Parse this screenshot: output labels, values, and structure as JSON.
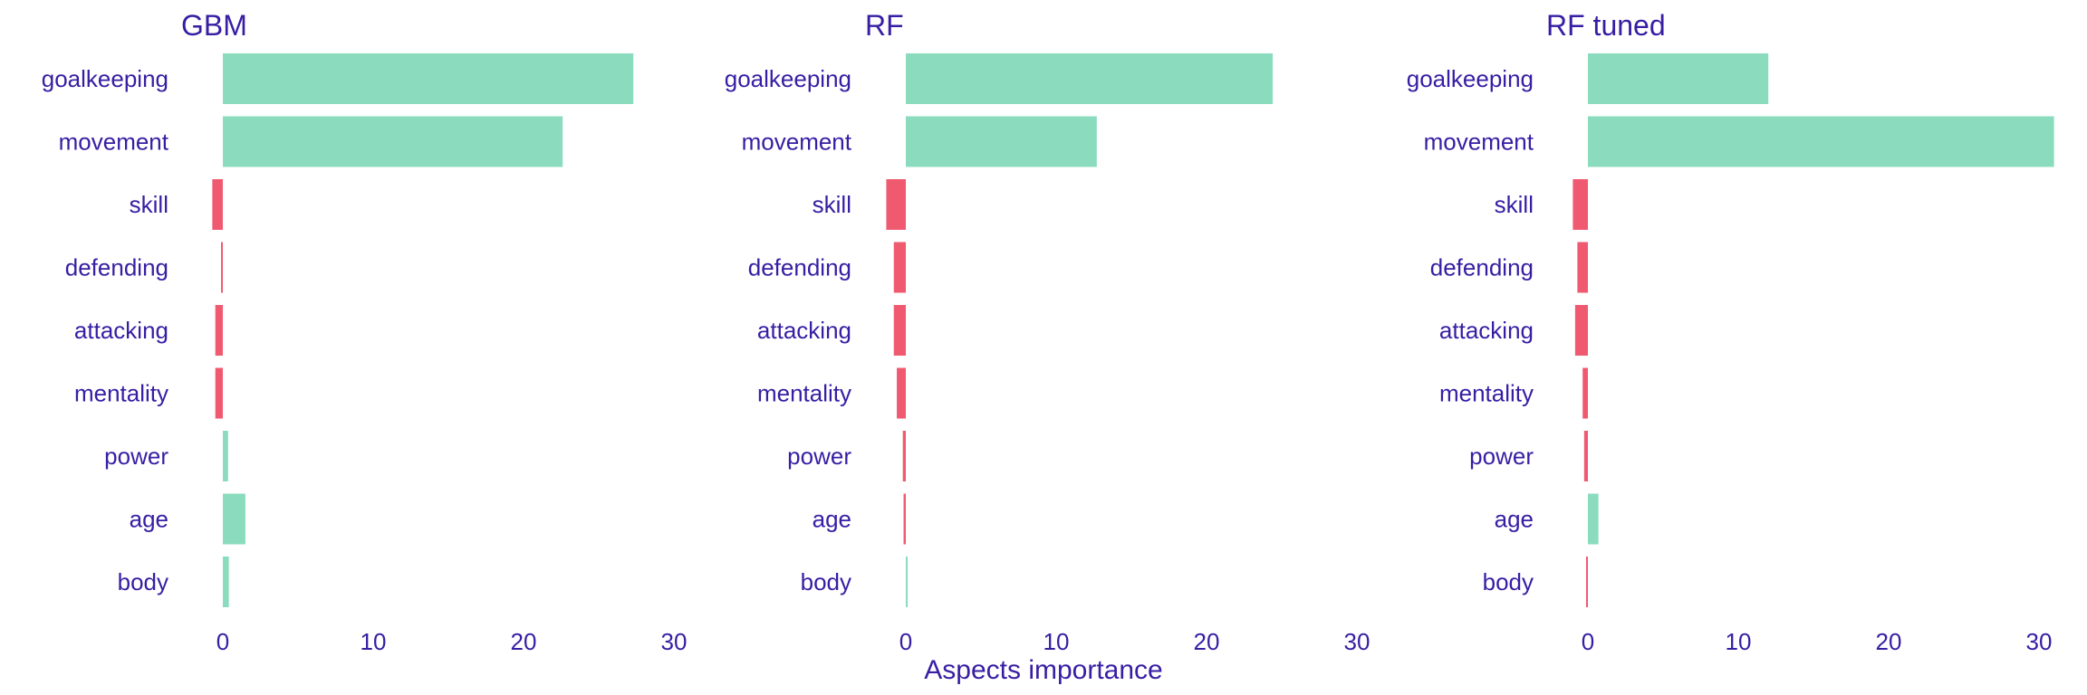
{
  "chart_data": [
    {
      "type": "bar",
      "orientation": "horizontal",
      "title": "GBM",
      "categories": [
        "goalkeeping",
        "movement",
        "skill",
        "defending",
        "attacking",
        "mentality",
        "power",
        "age",
        "body"
      ],
      "values": [
        27.3,
        22.6,
        -0.7,
        -0.1,
        -0.5,
        -0.5,
        0.35,
        1.5,
        0.4
      ],
      "xlim": [
        -1.5,
        31
      ],
      "xticks": [
        0,
        10,
        20,
        30
      ]
    },
    {
      "type": "bar",
      "orientation": "horizontal",
      "title": "RF",
      "categories": [
        "goalkeeping",
        "movement",
        "skill",
        "defending",
        "attacking",
        "mentality",
        "power",
        "age",
        "body"
      ],
      "values": [
        24.4,
        12.7,
        -1.3,
        -0.8,
        -0.8,
        -0.6,
        -0.2,
        -0.15,
        0.05
      ],
      "xlim": [
        -1.5,
        31
      ],
      "xticks": [
        0,
        10,
        20,
        30
      ]
    },
    {
      "type": "bar",
      "orientation": "horizontal",
      "title": "RF tuned",
      "categories": [
        "goalkeeping",
        "movement",
        "skill",
        "defending",
        "attacking",
        "mentality",
        "power",
        "age",
        "body"
      ],
      "values": [
        12.0,
        31.0,
        -1.0,
        -0.7,
        -0.85,
        -0.35,
        -0.25,
        0.7,
        -0.05
      ],
      "xlim": [
        -1.5,
        31
      ],
      "xticks": [
        0,
        10,
        20,
        30
      ]
    }
  ],
  "xlabel": "Aspects importance",
  "colors": {
    "positive": "#8bdcbe",
    "negative": "#f05a71",
    "text": "#371ea3"
  },
  "grid": false,
  "legend": "none"
}
